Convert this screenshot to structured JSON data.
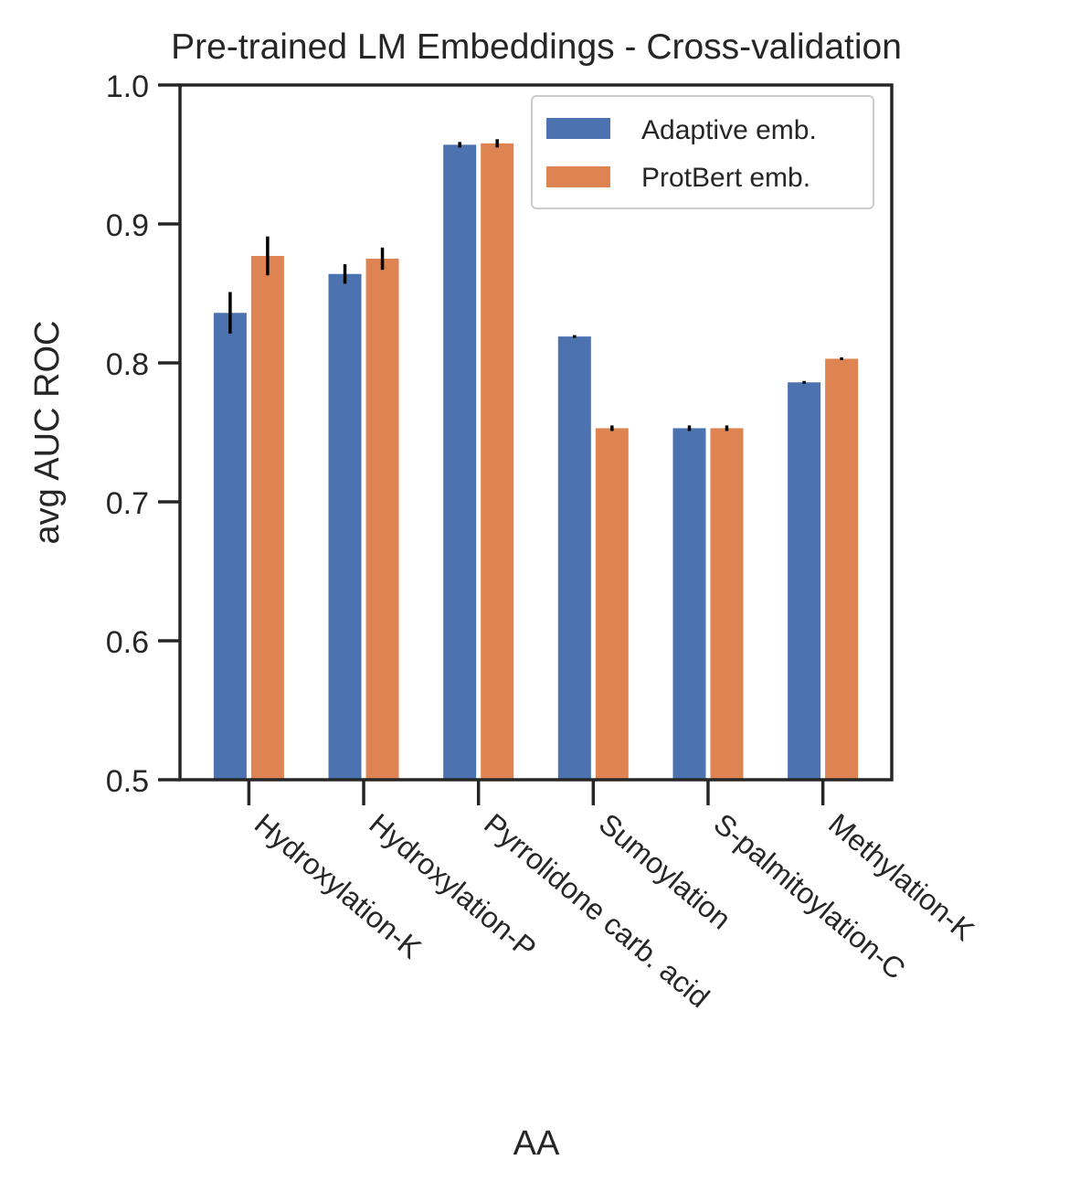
{
  "chart_data": {
    "type": "bar",
    "title": "Pre-trained LM Embeddings - Cross-validation",
    "xlabel": "AA",
    "ylabel": "avg AUC ROC",
    "ylim": [
      0.5,
      1.0
    ],
    "yticks": [
      0.5,
      0.6,
      0.7,
      0.8,
      0.9,
      1.0
    ],
    "ytick_labels": [
      "0.5",
      "0.6",
      "0.7",
      "0.8",
      "0.9",
      "1.0"
    ],
    "categories": [
      "Hydroxylation-K",
      "Hydroxylation-P",
      "Pyrrolidone carb. acid",
      "Sumoylation",
      "S-palmitoylation-C",
      "Methylation-K"
    ],
    "series": [
      {
        "name": "Adaptive emb.",
        "color": "#4c72b0",
        "values": [
          0.836,
          0.864,
          0.957,
          0.819,
          0.753,
          0.786
        ],
        "errors": [
          0.015,
          0.007,
          0.002,
          0.001,
          0.002,
          0.001
        ]
      },
      {
        "name": "ProtBert emb.",
        "color": "#dd8452",
        "values": [
          0.877,
          0.875,
          0.958,
          0.753,
          0.753,
          0.803
        ],
        "errors": [
          0.014,
          0.008,
          0.003,
          0.002,
          0.002,
          0.001
        ]
      }
    ],
    "legend_position": "top-right",
    "grid": false
  }
}
